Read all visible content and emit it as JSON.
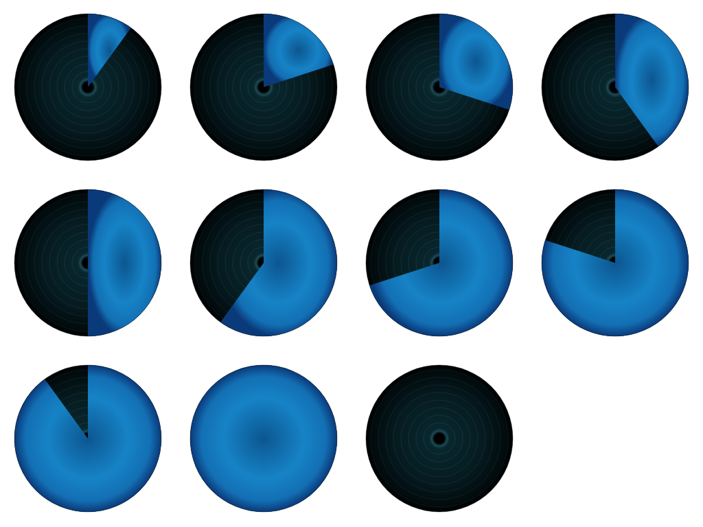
{
  "chart_data": {
    "type": "gauge",
    "values": [
      10,
      20,
      30,
      40,
      50,
      60,
      70,
      80,
      90,
      100,
      0
    ],
    "ylim": [
      0,
      100
    ],
    "color": "#1683c6",
    "tick_labels": false
  }
}
